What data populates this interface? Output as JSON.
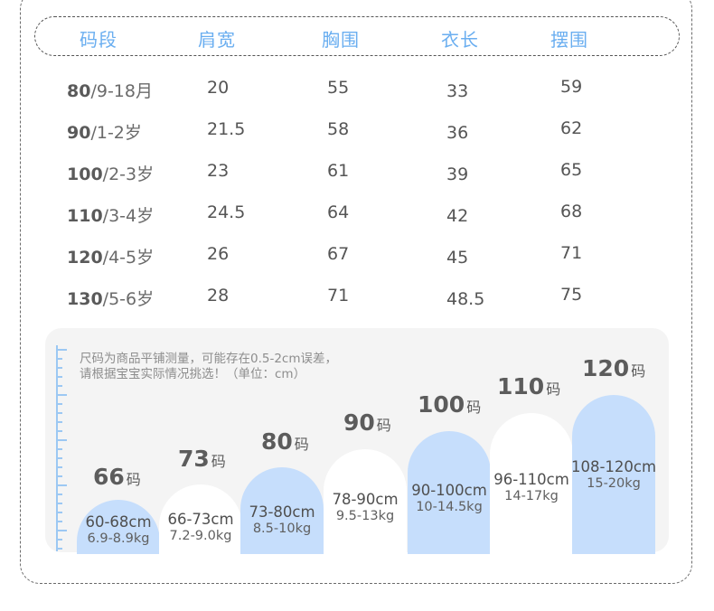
{
  "table": {
    "headers": [
      "码段",
      "肩宽",
      "胸围",
      "衣长",
      "摆围"
    ],
    "rows": [
      {
        "size": "80",
        "age": "/9-18月",
        "shoulder": "20",
        "chest": "55",
        "length": "33",
        "hem": "59"
      },
      {
        "size": "90",
        "age": "/1-2岁",
        "shoulder": "21.5",
        "chest": "58",
        "length": "36",
        "hem": "62"
      },
      {
        "size": "100",
        "age": "/2-3岁",
        "shoulder": "23",
        "chest": "61",
        "length": "39",
        "hem": "65"
      },
      {
        "size": "110",
        "age": "/3-4岁",
        "shoulder": "24.5",
        "chest": "64",
        "length": "42",
        "hem": "68"
      },
      {
        "size": "120",
        "age": "/4-5岁",
        "shoulder": "26",
        "chest": "67",
        "length": "45",
        "hem": "71"
      },
      {
        "size": "130",
        "age": "/5-6岁",
        "shoulder": "28",
        "chest": "71",
        "length": "48.5",
        "hem": "75"
      }
    ]
  },
  "note": {
    "line1": "尺码为商品平铺测量，可能存在0.5-2cm误差，",
    "line2": "请根据宝宝实际情况挑选！（单位：cm）"
  },
  "sizes": [
    {
      "size": "66",
      "unit": "码",
      "height": "60-68cm",
      "weight": "6.9-8.9kg",
      "style": "blue"
    },
    {
      "size": "73",
      "unit": "码",
      "height": "66-73cm",
      "weight": "7.2-9.0kg",
      "style": "white"
    },
    {
      "size": "80",
      "unit": "码",
      "height": "73-80cm",
      "weight": "8.5-10kg",
      "style": "blue"
    },
    {
      "size": "90",
      "unit": "码",
      "height": "78-90cm",
      "weight": "9.5-13kg",
      "style": "white"
    },
    {
      "size": "100",
      "unit": "码",
      "height": "90-100cm",
      "weight": "10-14.5kg",
      "style": "blue"
    },
    {
      "size": "110",
      "unit": "码",
      "height": "96-110cm",
      "weight": "14-17kg",
      "style": "white"
    },
    {
      "size": "120",
      "unit": "码",
      "height": "108-120cm",
      "weight": "15-20kg",
      "style": "blue"
    }
  ],
  "colors": {
    "header_text": "#6aaef0",
    "bar_blue": "#c6defc",
    "bar_white": "#ffffff",
    "panel_bg": "#f4f4f4"
  }
}
